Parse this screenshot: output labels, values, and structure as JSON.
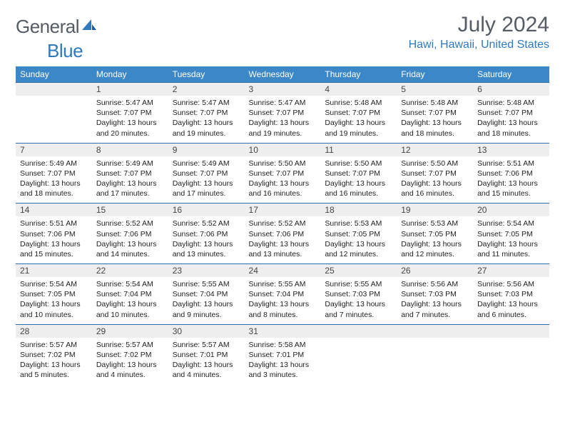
{
  "logo": {
    "word1": "General",
    "word2": "Blue"
  },
  "title": "July 2024",
  "location": "Hawi, Hawaii, United States",
  "colors": {
    "header_bg": "#3b87c8",
    "header_text": "#ffffff",
    "border": "#2f6fa8",
    "daynum_bg": "#eeeeee",
    "title_color": "#555c66",
    "accent": "#2f7abf"
  },
  "day_names": [
    "Sunday",
    "Monday",
    "Tuesday",
    "Wednesday",
    "Thursday",
    "Friday",
    "Saturday"
  ],
  "weeks": [
    {
      "nums": [
        "",
        "1",
        "2",
        "3",
        "4",
        "5",
        "6"
      ],
      "cells": [
        null,
        {
          "sunrise": "5:47 AM",
          "sunset": "7:07 PM",
          "daylight": "13 hours and 20 minutes."
        },
        {
          "sunrise": "5:47 AM",
          "sunset": "7:07 PM",
          "daylight": "13 hours and 19 minutes."
        },
        {
          "sunrise": "5:47 AM",
          "sunset": "7:07 PM",
          "daylight": "13 hours and 19 minutes."
        },
        {
          "sunrise": "5:48 AM",
          "sunset": "7:07 PM",
          "daylight": "13 hours and 19 minutes."
        },
        {
          "sunrise": "5:48 AM",
          "sunset": "7:07 PM",
          "daylight": "13 hours and 18 minutes."
        },
        {
          "sunrise": "5:48 AM",
          "sunset": "7:07 PM",
          "daylight": "13 hours and 18 minutes."
        }
      ]
    },
    {
      "nums": [
        "7",
        "8",
        "9",
        "10",
        "11",
        "12",
        "13"
      ],
      "cells": [
        {
          "sunrise": "5:49 AM",
          "sunset": "7:07 PM",
          "daylight": "13 hours and 18 minutes."
        },
        {
          "sunrise": "5:49 AM",
          "sunset": "7:07 PM",
          "daylight": "13 hours and 17 minutes."
        },
        {
          "sunrise": "5:49 AM",
          "sunset": "7:07 PM",
          "daylight": "13 hours and 17 minutes."
        },
        {
          "sunrise": "5:50 AM",
          "sunset": "7:07 PM",
          "daylight": "13 hours and 16 minutes."
        },
        {
          "sunrise": "5:50 AM",
          "sunset": "7:07 PM",
          "daylight": "13 hours and 16 minutes."
        },
        {
          "sunrise": "5:50 AM",
          "sunset": "7:07 PM",
          "daylight": "13 hours and 16 minutes."
        },
        {
          "sunrise": "5:51 AM",
          "sunset": "7:06 PM",
          "daylight": "13 hours and 15 minutes."
        }
      ]
    },
    {
      "nums": [
        "14",
        "15",
        "16",
        "17",
        "18",
        "19",
        "20"
      ],
      "cells": [
        {
          "sunrise": "5:51 AM",
          "sunset": "7:06 PM",
          "daylight": "13 hours and 15 minutes."
        },
        {
          "sunrise": "5:52 AM",
          "sunset": "7:06 PM",
          "daylight": "13 hours and 14 minutes."
        },
        {
          "sunrise": "5:52 AM",
          "sunset": "7:06 PM",
          "daylight": "13 hours and 13 minutes."
        },
        {
          "sunrise": "5:52 AM",
          "sunset": "7:06 PM",
          "daylight": "13 hours and 13 minutes."
        },
        {
          "sunrise": "5:53 AM",
          "sunset": "7:05 PM",
          "daylight": "13 hours and 12 minutes."
        },
        {
          "sunrise": "5:53 AM",
          "sunset": "7:05 PM",
          "daylight": "13 hours and 12 minutes."
        },
        {
          "sunrise": "5:54 AM",
          "sunset": "7:05 PM",
          "daylight": "13 hours and 11 minutes."
        }
      ]
    },
    {
      "nums": [
        "21",
        "22",
        "23",
        "24",
        "25",
        "26",
        "27"
      ],
      "cells": [
        {
          "sunrise": "5:54 AM",
          "sunset": "7:05 PM",
          "daylight": "13 hours and 10 minutes."
        },
        {
          "sunrise": "5:54 AM",
          "sunset": "7:04 PM",
          "daylight": "13 hours and 10 minutes."
        },
        {
          "sunrise": "5:55 AM",
          "sunset": "7:04 PM",
          "daylight": "13 hours and 9 minutes."
        },
        {
          "sunrise": "5:55 AM",
          "sunset": "7:04 PM",
          "daylight": "13 hours and 8 minutes."
        },
        {
          "sunrise": "5:55 AM",
          "sunset": "7:03 PM",
          "daylight": "13 hours and 7 minutes."
        },
        {
          "sunrise": "5:56 AM",
          "sunset": "7:03 PM",
          "daylight": "13 hours and 7 minutes."
        },
        {
          "sunrise": "5:56 AM",
          "sunset": "7:03 PM",
          "daylight": "13 hours and 6 minutes."
        }
      ]
    },
    {
      "nums": [
        "28",
        "29",
        "30",
        "31",
        "",
        "",
        ""
      ],
      "cells": [
        {
          "sunrise": "5:57 AM",
          "sunset": "7:02 PM",
          "daylight": "13 hours and 5 minutes."
        },
        {
          "sunrise": "5:57 AM",
          "sunset": "7:02 PM",
          "daylight": "13 hours and 4 minutes."
        },
        {
          "sunrise": "5:57 AM",
          "sunset": "7:01 PM",
          "daylight": "13 hours and 4 minutes."
        },
        {
          "sunrise": "5:58 AM",
          "sunset": "7:01 PM",
          "daylight": "13 hours and 3 minutes."
        },
        null,
        null,
        null
      ]
    }
  ],
  "labels": {
    "sunrise": "Sunrise:",
    "sunset": "Sunset:",
    "daylight": "Daylight:"
  }
}
